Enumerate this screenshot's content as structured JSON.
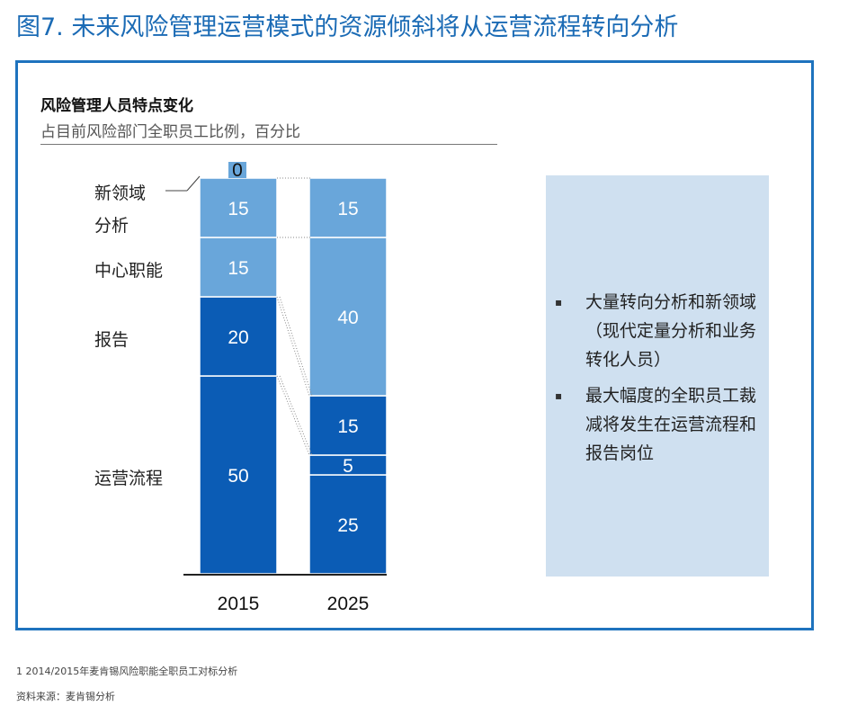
{
  "figure_title": "图7. 未来风险管理运营模式的资源倾斜将从运营流程转向分析",
  "panel": {
    "title": "风险管理人员特点变化",
    "subtitle": "占目前风险部门全职员工比例，百分比"
  },
  "chart_data": {
    "type": "bar",
    "stacked": true,
    "title": "风险管理人员特点变化",
    "subtitle": "占目前风险部门全职员工比例，百分比",
    "categories": [
      "2015",
      "2025"
    ],
    "ylim": [
      0,
      100
    ],
    "series": [
      {
        "name": "运营流程",
        "values": [
          50,
          25
        ],
        "color": "#0b5cb5"
      },
      {
        "name": "报告",
        "values": [
          20,
          5
        ],
        "color": "#0b5cb5"
      },
      {
        "name": "",
        "values": [
          0,
          15
        ],
        "color": "#0b5cb5"
      },
      {
        "name": "中心职能",
        "values": [
          15,
          40
        ],
        "color": "#69a6da"
      },
      {
        "name": "分析",
        "values": [
          15,
          15
        ],
        "color": "#69a6da"
      },
      {
        "name": "新领域",
        "values": [
          0,
          0
        ],
        "color": "#69a6da"
      }
    ],
    "grid": false,
    "legend": "left-labels"
  },
  "notes": [
    "大量转向分析和新领域（现代定量分析和业务转化人员）",
    "最大幅度的全职员工裁减将发生在运营流程和报告岗位"
  ],
  "footnote": "1 2014/2015年麦肯锡风险职能全职员工对标分析",
  "source": "资料来源：麦肯锡分析"
}
